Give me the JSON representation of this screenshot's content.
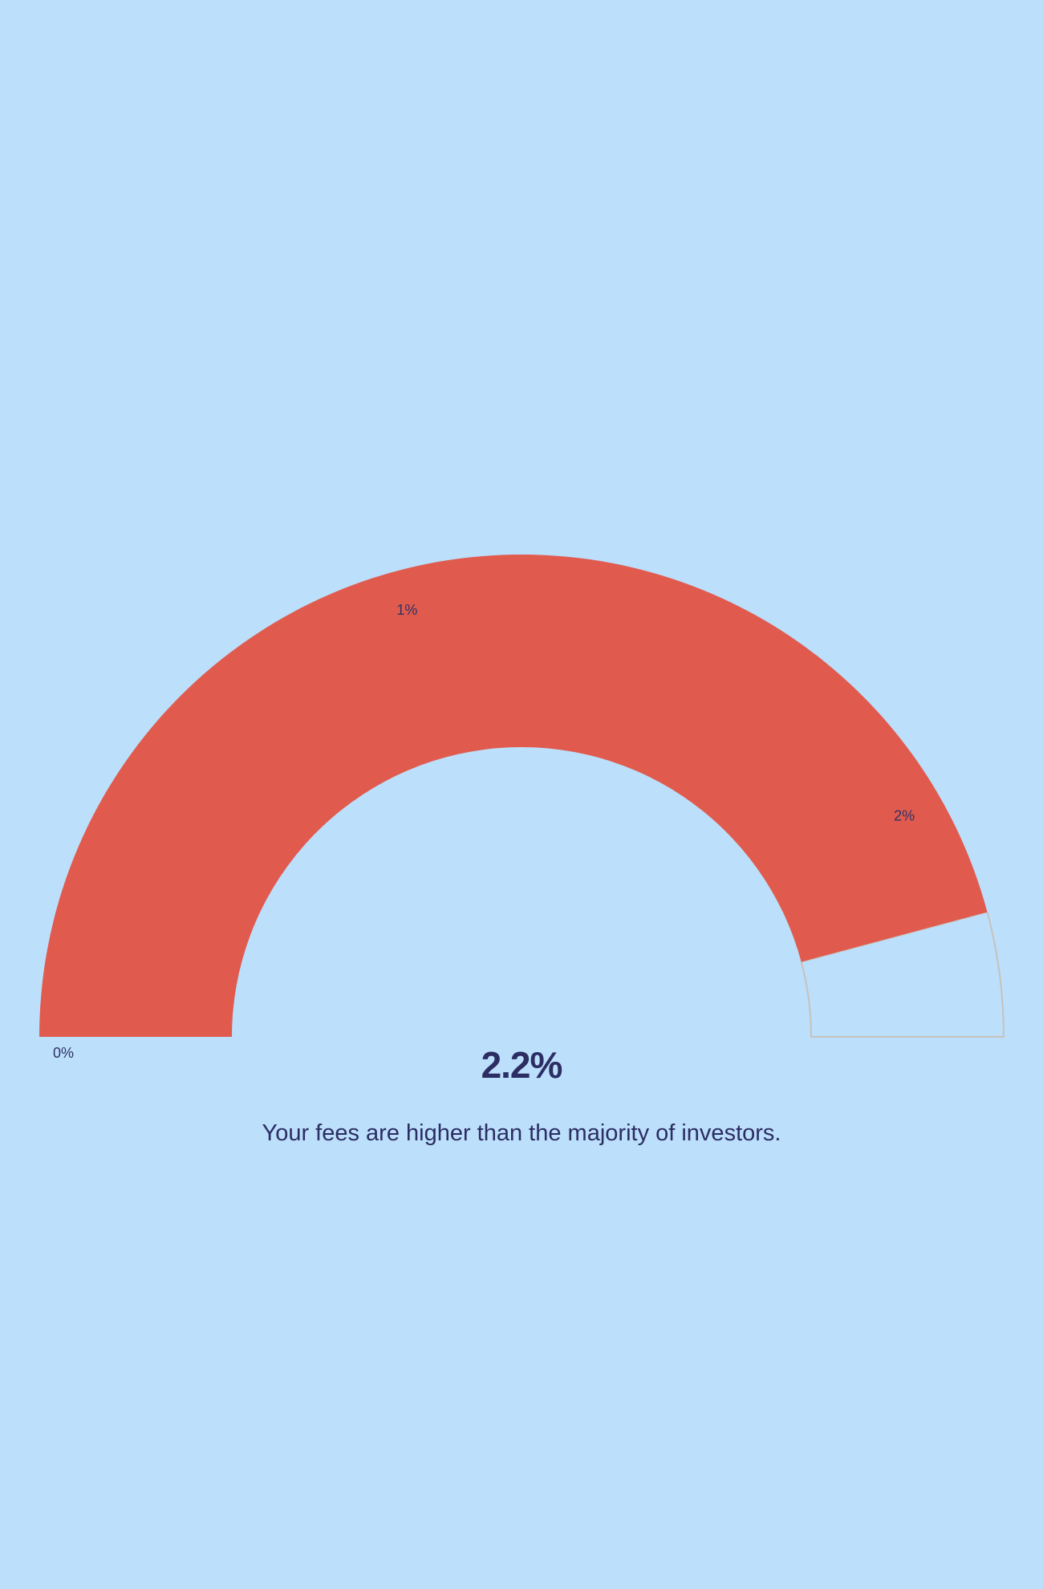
{
  "chart_data": {
    "type": "gauge",
    "value": 2.2,
    "max": 2.4,
    "min": 0,
    "value_label": "2.2%",
    "ticks": [
      {
        "value": 0,
        "label": "0%"
      },
      {
        "value": 1,
        "label": "1%"
      },
      {
        "value": 2,
        "label": "2%"
      }
    ],
    "message": "Your fees are higher than the majority of investors."
  },
  "colors": {
    "background": "#bcdffb",
    "filled": "#e05b4e",
    "track_outline": "#c7c2bb",
    "text": "#2c2d63"
  }
}
